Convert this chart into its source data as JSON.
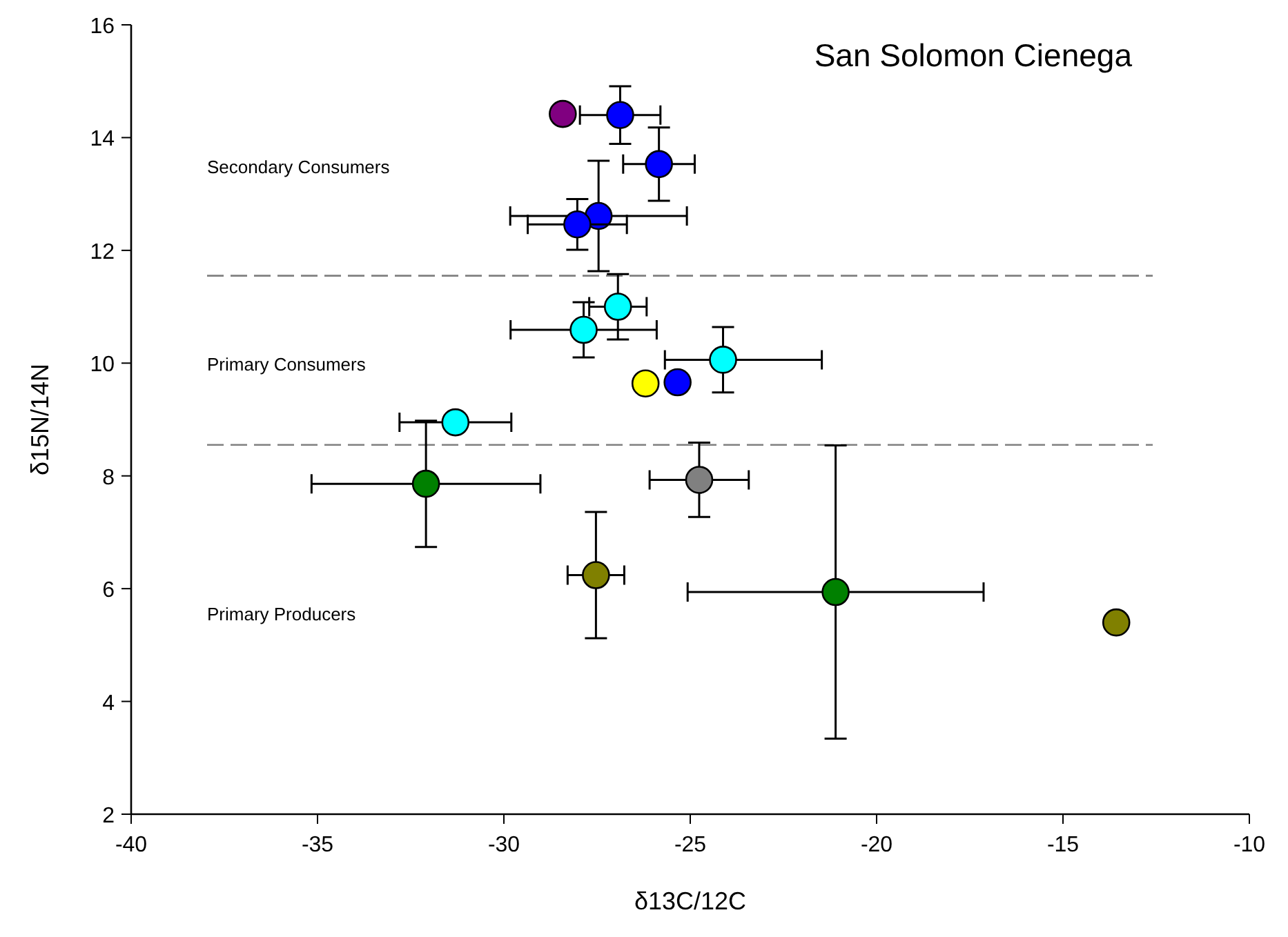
{
  "chart_data": {
    "type": "scatter",
    "title": "San Solomon Cienega",
    "xlabel": "δ13C/12C",
    "ylabel": "δ15N/14N",
    "xlim": [
      -40,
      -10
    ],
    "xticks": [
      -40,
      -35,
      -30,
      -25,
      -20,
      -15,
      -10
    ],
    "ylim": [
      2,
      16
    ],
    "yticks": [
      2,
      4,
      6,
      8,
      10,
      12,
      14,
      16
    ],
    "grid": false,
    "marker": "circle",
    "series": [
      {
        "x": [
          -28.42,
          -26.88,
          -25.84,
          -27.46,
          -28.03,
          -26.94,
          -27.86,
          -24.12,
          -26.2,
          -25.34,
          -31.3,
          -32.09,
          -27.53,
          -24.76,
          -21.1,
          -13.57
        ],
        "values": [
          14.42,
          14.4,
          13.53,
          12.61,
          12.46,
          11.0,
          10.59,
          10.06,
          9.64,
          9.66,
          8.95,
          7.86,
          6.24,
          7.93,
          5.94,
          5.4
        ],
        "colors": [
          "#800080",
          "#0000ff",
          "#0000ff",
          "#0000ff",
          "#0000ff",
          "#00ffff",
          "#00ffff",
          "#00ffff",
          "#ffff00",
          "#0000ff",
          "#00ffff",
          "#008000",
          "#808000",
          "#808080",
          "#008000",
          "#808000"
        ],
        "errors": [
          null,
          0.51,
          0.65,
          0.98,
          0.45,
          0.58,
          0.49,
          0.58,
          null,
          null,
          null,
          1.12,
          1.12,
          0.66,
          2.6,
          null
        ],
        "xerrors": [
          null,
          1.08,
          0.96,
          2.37,
          1.33,
          0.77,
          1.96,
          [
            -25.68,
            -21.47
          ],
          null,
          null,
          1.5,
          3.07,
          0.76,
          1.33,
          3.97,
          null
        ]
      }
    ],
    "ref_lines": [
      {
        "axis": "y",
        "value": 11.55,
        "color": "#808080",
        "line_style": "dashed"
      },
      {
        "axis": "y",
        "value": 8.55,
        "color": "#808080",
        "line_style": "dashed"
      }
    ],
    "annotations": [
      "Secondary Consumers",
      "Primary Consumers",
      "Primary Producers"
    ]
  }
}
